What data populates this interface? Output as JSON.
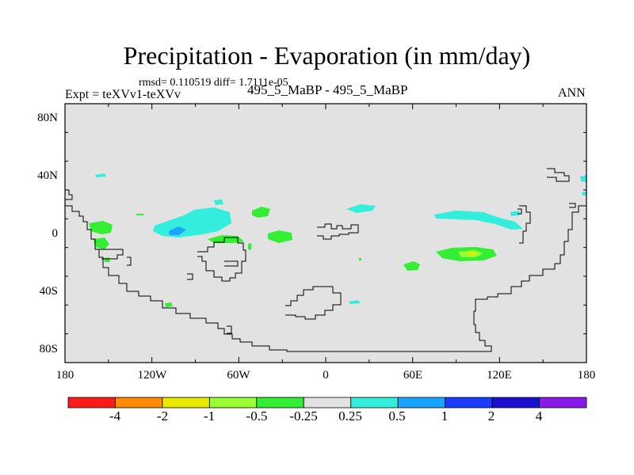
{
  "title": "Precipitation - Evaporation (in mm/day)",
  "stats": "rmsd= 0.110519 diff= 1.7111e-05",
  "expt": "Expt = teXVv1-teXVv",
  "period": "495_5_MaBP - 495_5_MaBP",
  "season": "ANN",
  "lat_labels": [
    "80N",
    "40N",
    "0",
    "40S",
    "80S"
  ],
  "lon_labels": [
    "180",
    "120W",
    "60W",
    "0",
    "60E",
    "120E",
    "180"
  ],
  "colorbar": {
    "colors": [
      "#ff1a1a",
      "#ff8c00",
      "#e8e800",
      "#99ff33",
      "#33ee33",
      "#e2e2e2",
      "#33eedd",
      "#19a5ff",
      "#1a3cff",
      "#1a10d0",
      "#8b1ae6"
    ],
    "labels": [
      "-4",
      "-2",
      "-1",
      "-0.5",
      "-0.25",
      "0.25",
      "0.5",
      "1",
      "2",
      "4"
    ]
  },
  "map": {
    "background": "#e2e2e2",
    "coast_color": "#000000"
  }
}
